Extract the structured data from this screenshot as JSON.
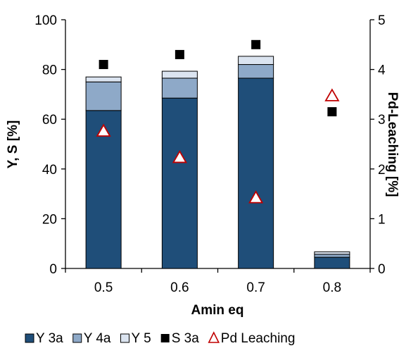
{
  "chart_data": {
    "type": "bar",
    "stacked": true,
    "categories": [
      "0.5",
      "0.6",
      "0.7",
      "0.8"
    ],
    "xlabel": "Amin eq",
    "ylabel": "Y, S [%]",
    "y2label": "Pd-Leaching [%]",
    "ylim": [
      0,
      100
    ],
    "y2lim": [
      0,
      5
    ],
    "yticks": [
      "0",
      "20",
      "40",
      "60",
      "80",
      "100"
    ],
    "y2ticks": [
      "0",
      "1",
      "2",
      "3",
      "4",
      "5"
    ],
    "grid": false,
    "legend_position": "bottom",
    "series": [
      {
        "name": "Y  3a",
        "kind": "bar",
        "axis": "left",
        "color": "#1f4e79",
        "values": [
          63.5,
          68.5,
          76.5,
          4.5
        ]
      },
      {
        "name": "Y  4a",
        "kind": "bar",
        "axis": "left",
        "color": "#8ea9c8",
        "values": [
          11.5,
          8.0,
          5.5,
          1.2
        ]
      },
      {
        "name": "Y  5",
        "kind": "bar",
        "axis": "left",
        "color": "#dbe4f0",
        "values": [
          2.0,
          2.8,
          3.3,
          1.0
        ]
      },
      {
        "name": "S  3a",
        "kind": "marker",
        "marker": "square",
        "axis": "left",
        "color": "#000000",
        "values": [
          82.0,
          86.0,
          90.0,
          63.0
        ]
      },
      {
        "name": "Pd Leaching",
        "kind": "marker",
        "marker": "triangle",
        "axis": "right",
        "color": "#c00000",
        "values": [
          2.75,
          2.22,
          1.41,
          3.46
        ]
      }
    ]
  }
}
